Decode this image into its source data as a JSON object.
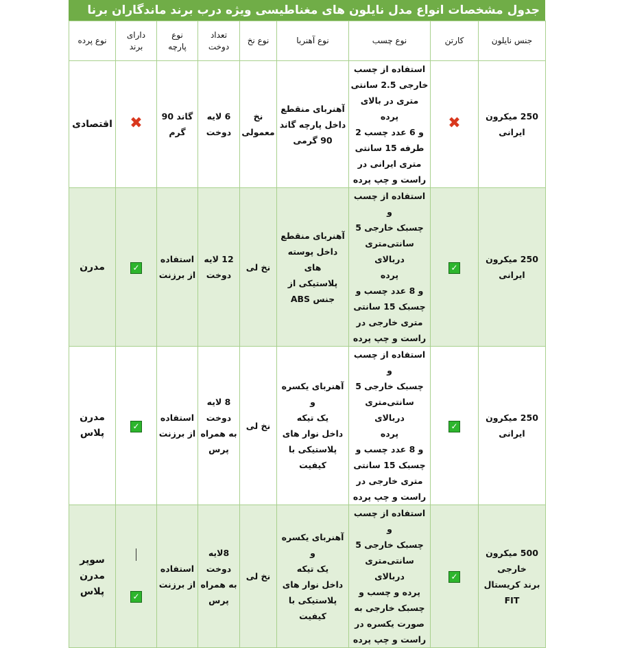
{
  "title": "جدول مشخصات انواع مدل نایلون های مغناطیسی ویژه درب  برند ماندگاران برنا",
  "headers": [
    "جنس نایلون",
    "کارتن",
    "نوع چسب",
    "نوع آهنربا",
    "نوع نخ",
    "تعداد\nدوخت",
    "نوع\nپارچه",
    "دارای\nبرند",
    "نوع پرده"
  ],
  "rows": [
    {
      "nylon": "250 میکرون\nایرانی",
      "carton": "x",
      "glue": "استفاده از چسب\nخارجی 2.5 سانتی\nمتری در بالای پرده\nو 6 عدد چسب 2\nطرفه 15 سانتی\nمتری ایرانی در\nراست و چپ پرده",
      "magnet": "آهنربای منقطع\nداخل پارچه گاند\n90 گرمی",
      "thread": "نخ\nمعمولی",
      "stitch": "6 لایه\nدوخت",
      "fabric": "گاند 90\nگرم",
      "brand": "x",
      "type": "اقتصادی"
    },
    {
      "nylon": "250 میکرون\nایرانی",
      "carton": "check",
      "glue": "استفاده از چسب و\nچسبک خارجی 5\nسانتی‌متری دربالای\nپرده\nو 8 عدد چسب و\nچسبک 15 سانتی\nمتری خارجی در\nراست و چپ پرده",
      "magnet": "آهنربای منقطع\nداخل پوسته های\nپلاستیکی از\nجنس ABS",
      "thread": "نخ لی",
      "stitch": "12 لایه\nدوخت",
      "fabric": "استفاده\nاز برزنت",
      "brand": "check",
      "type": "مدرن"
    },
    {
      "nylon": "250 میکرون\nایرانی",
      "carton": "check",
      "glue": "استفاده از چسب و\nچسبک خارجی 5\nسانتی‌متری دربالای\nپرده\nو 8 عدد چسب و\nچسبک 15 سانتی\nمتری خارجی در\nراست و چپ پرده",
      "magnet": "آهنربای یکسره و\nیک تیکه\nداخل نوار های\nپلاستیکی با\nکیفیت",
      "thread": "نخ لی",
      "stitch": "8 لایه\nدوخت\nبه همراه\nپرس",
      "fabric": "استفاده\nاز برزنت",
      "brand": "check",
      "type": "مدرن\nپلاس"
    },
    {
      "nylon": "500 میکرون\nخارجی\nبرند کریستال FIT",
      "carton": "check",
      "glue": "استفاده از چسب و\nچسبک خارجی 5\nسانتی‌متری دربالای\nپرده و چسب و\nچسبک خارجی به\nصورت یکسره در\nراست و چپ پرده",
      "magnet": "آهنربای یکسره و\nیک تیکه\nداخل نوار های\nپلاستیکی با\nکیفیت",
      "thread": "نخ لی",
      "stitch": "8لایه\nدوخت\nبه همراه\nپرس",
      "fabric": "استفاده\nاز برزنت",
      "brand": "check",
      "type": "سوپر\nمدرن\nپلاس"
    }
  ],
  "colors": {
    "title_bg": "#70ad47",
    "row_alt": "#e2efd9",
    "border": "#a8d08d",
    "check": "#2db52d",
    "x": "#d9381e"
  }
}
